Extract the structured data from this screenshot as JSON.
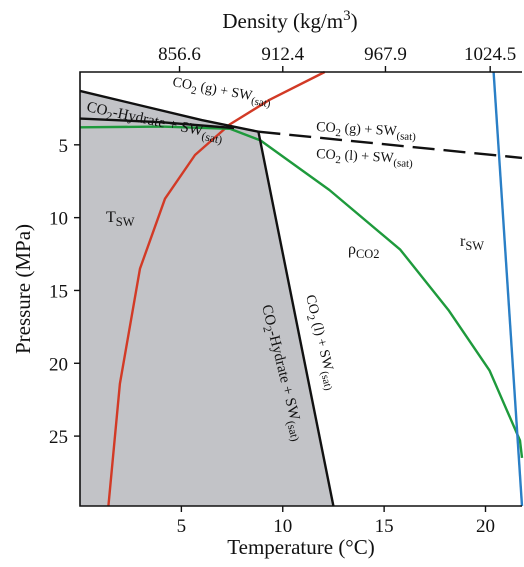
{
  "chart_data": {
    "type": "line",
    "xlabel": "Temperature (°C)",
    "ylabel": "Pressure (MPa)",
    "x2label": [
      "Density (kg/m",
      "3",
      ")"
    ],
    "xlim": [
      0,
      21.8
    ],
    "xticks": [
      5,
      10,
      15,
      20
    ],
    "ylim": [
      0,
      29.8
    ],
    "yticks": [
      5,
      10,
      15,
      20,
      25
    ],
    "y_inverted": true,
    "x2lim": [
      802.8,
      1041.7
    ],
    "x2ticks": [
      856.6,
      912.4,
      967.9,
      1024.5
    ],
    "region": {
      "color": "#c2c3c7",
      "x": [
        0,
        3,
        6,
        8.8,
        12.5,
        0
      ],
      "values": [
        1.3,
        2.3,
        3.3,
        4.1,
        29.8,
        29.8
      ]
    },
    "series": [
      {
        "color": "#d23a26",
        "style": "solid",
        "x": [
          1.4,
          1.97,
          2.96,
          4.19,
          5.67,
          7.39,
          9.36,
          12.07
        ],
        "values": [
          29.8,
          21.4,
          13.5,
          8.7,
          5.7,
          3.6,
          1.9,
          0
        ]
      },
      {
        "color": "#1e9a3c",
        "style": "solid",
        "x": [
          0,
          4,
          7.4,
          8.9,
          12.3,
          15.8,
          18.2,
          20.2,
          21.7,
          21.8
        ],
        "values": [
          3.8,
          3.75,
          3.9,
          4.7,
          8.1,
          12.2,
          16.4,
          20.5,
          25.3,
          26.5
        ]
      },
      {
        "color": "#2a7fc6",
        "style": "solid",
        "x": [
          20.4,
          21.8
        ],
        "values": [
          0,
          29.8
        ]
      },
      {
        "color": "#111111",
        "style": "solid",
        "x": [
          0,
          3,
          6,
          8.8
        ],
        "values": [
          1.3,
          2.3,
          3.3,
          4.1
        ]
      },
      {
        "color": "#111111",
        "style": "solid",
        "x": [
          0,
          4,
          7.6
        ],
        "values": [
          3.2,
          3.45,
          3.85
        ]
      },
      {
        "color": "#111111",
        "style": "solid",
        "x": [
          8.8,
          12.5
        ],
        "values": [
          4.1,
          29.8
        ]
      },
      {
        "color": "#111111",
        "style": "dashed",
        "x": [
          8.8,
          21.8
        ],
        "values": [
          4.1,
          5.9
        ]
      }
    ],
    "annotations": [
      [
        "CO",
        "2",
        " (g) + SW",
        "(sat)"
      ],
      [
        "CO",
        "2",
        "-Hydrate + SW",
        "(sat)"
      ],
      [
        "CO",
        "2",
        " (g) + SW",
        "(sat)"
      ],
      [
        "CO",
        "2",
        " (l) + SW",
        "(sat)"
      ],
      [
        "T",
        "SW"
      ],
      [
        "ρ",
        "CO2"
      ],
      [
        "r",
        "SW"
      ],
      [
        "CO",
        "2",
        " (l) + SW",
        "(sat)"
      ],
      [
        "CO",
        "2",
        "-Hydrate + SW",
        "(sat)"
      ]
    ]
  }
}
